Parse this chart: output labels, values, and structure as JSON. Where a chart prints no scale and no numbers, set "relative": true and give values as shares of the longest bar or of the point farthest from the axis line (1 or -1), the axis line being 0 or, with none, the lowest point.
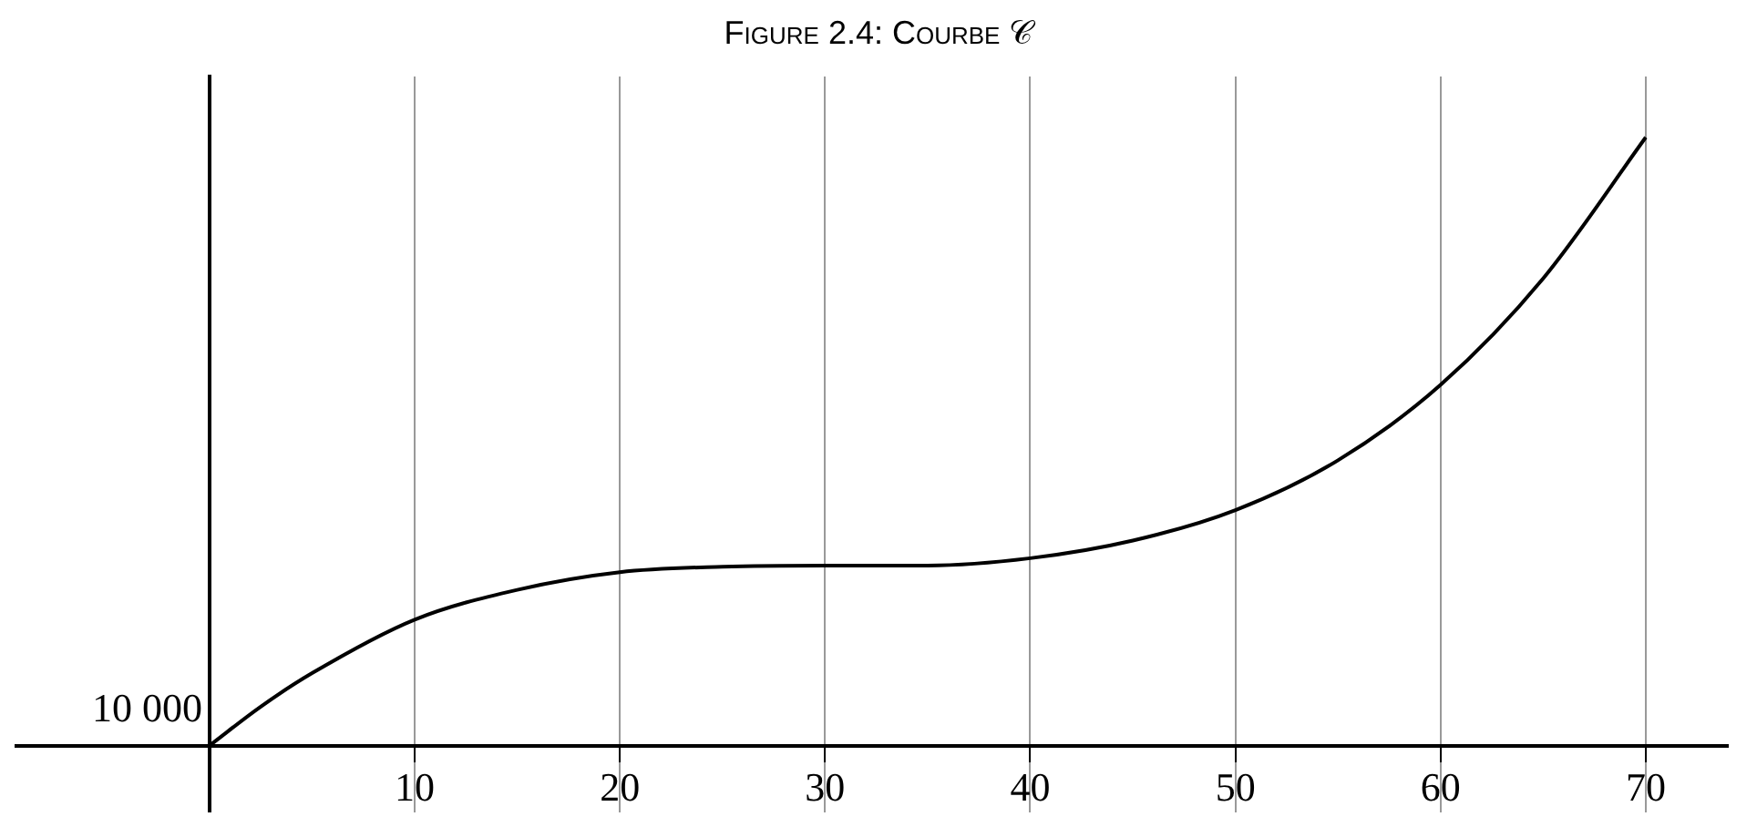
{
  "chart_data": {
    "type": "line",
    "title": "Figure 2.4: Courbe 𝒞",
    "relative": true,
    "x": [
      0,
      2.5,
      5,
      10,
      15,
      20,
      25,
      30,
      35,
      40,
      45,
      50,
      55,
      60,
      65,
      70
    ],
    "series": [
      {
        "color": "#000000",
        "values": [
          0,
          0.064,
          0.119,
          0.207,
          0.256,
          0.285,
          0.294,
          0.296,
          0.296,
          0.308,
          0.337,
          0.387,
          0.469,
          0.593,
          0.768,
          1
        ]
      }
    ],
    "xlim": [
      -9.5,
      74
    ],
    "xticks": [
      10,
      20,
      30,
      40,
      50,
      60,
      70
    ],
    "annotations": [
      "10 000"
    ],
    "grid": true,
    "marker": "none",
    "line_style": "solid",
    "legend": false
  }
}
